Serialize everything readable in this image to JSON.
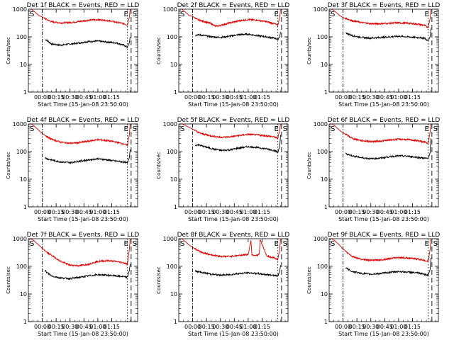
{
  "colors": {
    "events": "#000000",
    "lld": "#e00000",
    "axes": "#000000",
    "background": "#ffffff"
  },
  "chart_data": [
    {
      "type": "line",
      "title": "Det 1f BLACK = Events, RED = LLD",
      "xlabel": "Start Time (15-Jan-08 23:50:00)",
      "ylabel": "Counts/sec",
      "yscale": "log",
      "ylim": [
        1,
        1000
      ],
      "x_ticks": [
        "00:00",
        "00:15",
        "00:30",
        "00:45",
        "01:00",
        "01:15"
      ],
      "y_ticks": [
        "1",
        "10",
        "100",
        "1000"
      ],
      "markers": [
        {
          "label": "S",
          "x_min": 0
        },
        {
          "label": "E",
          "x_min": 92
        },
        {
          "label": "S",
          "x_min": 96
        }
      ],
      "series": [
        {
          "name": "Events",
          "x_min": [
            3,
            5,
            10,
            20,
            30,
            40,
            50,
            60,
            70,
            80,
            88,
            92,
            94,
            95
          ],
          "values": [
            80,
            75,
            55,
            50,
            55,
            60,
            68,
            70,
            65,
            60,
            50,
            42,
            60,
            100
          ]
        },
        {
          "name": "LLD",
          "x_min": [
            -12,
            -8,
            -4,
            0,
            2,
            5,
            10,
            20,
            30,
            40,
            50,
            60,
            70,
            80,
            88,
            92,
            94,
            95
          ],
          "values": [
            1000,
            800,
            600,
            520,
            480,
            420,
            350,
            320,
            330,
            360,
            400,
            420,
            390,
            340,
            300,
            270,
            500,
            1000
          ]
        }
      ]
    },
    {
      "type": "line",
      "title": "Det 2f BLACK = Events, RED = LLD",
      "xlabel": "Start Time (15-Jan-08 23:50:00)",
      "ylabel": "Counts/sec",
      "yscale": "log",
      "ylim": [
        1,
        1000
      ],
      "x_ticks": [
        "00:00",
        "00:15",
        "00:30",
        "00:45",
        "01:00",
        "01:15"
      ],
      "y_ticks": [
        "1",
        "10",
        "100",
        "1000"
      ],
      "markers": [
        {
          "label": "S",
          "x_min": 0
        },
        {
          "label": "E",
          "x_min": 92
        },
        {
          "label": "S",
          "x_min": 96
        }
      ],
      "series": [
        {
          "name": "Events",
          "x_min": [
            3,
            5,
            10,
            20,
            30,
            40,
            50,
            60,
            70,
            80,
            88,
            92,
            94,
            95
          ],
          "values": [
            110,
            120,
            115,
            100,
            95,
            105,
            120,
            125,
            110,
            100,
            90,
            80,
            100,
            150
          ]
        },
        {
          "name": "LLD",
          "x_min": [
            -12,
            -8,
            -4,
            0,
            2,
            5,
            10,
            20,
            25,
            30,
            40,
            50,
            60,
            70,
            80,
            88,
            92,
            94,
            95
          ],
          "values": [
            1000,
            800,
            600,
            550,
            500,
            420,
            380,
            300,
            240,
            260,
            320,
            380,
            420,
            400,
            350,
            300,
            260,
            500,
            1000
          ]
        }
      ]
    },
    {
      "type": "line",
      "title": "Det 3f BLACK = Events, RED = LLD",
      "xlabel": "Start Time (15-Jan-08 23:50:00)",
      "ylabel": "Counts/sec",
      "yscale": "log",
      "ylim": [
        1,
        1000
      ],
      "x_ticks": [
        "00:00",
        "00:15",
        "00:30",
        "00:45",
        "01:00",
        "01:15"
      ],
      "y_ticks": [
        "1",
        "10",
        "100",
        "1000"
      ],
      "markers": [
        {
          "label": "S",
          "x_min": 0
        },
        {
          "label": "E",
          "x_min": 92
        },
        {
          "label": "S",
          "x_min": 96
        }
      ],
      "series": [
        {
          "name": "Events",
          "x_min": [
            3,
            5,
            10,
            20,
            30,
            40,
            50,
            60,
            70,
            80,
            88,
            92,
            94,
            95
          ],
          "values": [
            140,
            130,
            110,
            95,
            90,
            95,
            100,
            105,
            100,
            95,
            90,
            70,
            100,
            200
          ]
        },
        {
          "name": "LLD",
          "x_min": [
            -12,
            -8,
            -4,
            0,
            2,
            5,
            10,
            20,
            30,
            40,
            50,
            60,
            70,
            80,
            88,
            92,
            94,
            95
          ],
          "values": [
            1000,
            800,
            600,
            500,
            480,
            440,
            380,
            330,
            300,
            300,
            310,
            320,
            310,
            290,
            260,
            220,
            450,
            1000
          ]
        }
      ]
    },
    {
      "type": "line",
      "title": "Det 4f BLACK = Events, RED = LLD",
      "xlabel": "Start Time (15-Jan-08 23:50:00)",
      "ylabel": "Counts/sec",
      "yscale": "log",
      "ylim": [
        1,
        1000
      ],
      "x_ticks": [
        "00:00",
        "00:15",
        "00:30",
        "00:45",
        "01:00",
        "01:15"
      ],
      "y_ticks": [
        "1",
        "10",
        "100",
        "1000"
      ],
      "markers": [
        {
          "label": "S",
          "x_min": 0
        },
        {
          "label": "E",
          "x_min": 92
        },
        {
          "label": "S",
          "x_min": 96
        }
      ],
      "series": [
        {
          "name": "Events",
          "x_min": [
            3,
            5,
            10,
            20,
            30,
            40,
            50,
            60,
            70,
            80,
            88,
            92,
            94,
            95
          ],
          "values": [
            60,
            55,
            50,
            42,
            40,
            45,
            50,
            55,
            50,
            45,
            42,
            38,
            60,
            120
          ]
        },
        {
          "name": "LLD",
          "x_min": [
            -12,
            -8,
            -4,
            0,
            2,
            5,
            10,
            20,
            30,
            40,
            50,
            60,
            70,
            80,
            88,
            92,
            94,
            95
          ],
          "values": [
            1000,
            800,
            600,
            450,
            420,
            350,
            280,
            220,
            200,
            210,
            240,
            270,
            250,
            220,
            190,
            170,
            400,
            1000
          ]
        }
      ]
    },
    {
      "type": "line",
      "title": "Det 5f BLACK = Events, RED = LLD",
      "xlabel": "Start Time (15-Jan-08 23:50:00)",
      "ylabel": "Counts/sec",
      "yscale": "log",
      "ylim": [
        1,
        1000
      ],
      "x_ticks": [
        "00:00",
        "00:15",
        "00:30",
        "00:45",
        "01:00",
        "01:15"
      ],
      "y_ticks": [
        "1",
        "10",
        "100",
        "1000"
      ],
      "markers": [
        {
          "label": "S",
          "x_min": 0
        },
        {
          "label": "E",
          "x_min": 92
        },
        {
          "label": "S",
          "x_min": 96
        }
      ],
      "series": [
        {
          "name": "Events",
          "x_min": [
            3,
            5,
            10,
            20,
            30,
            40,
            50,
            60,
            70,
            80,
            88,
            92,
            94,
            95
          ],
          "values": [
            160,
            180,
            160,
            130,
            110,
            115,
            135,
            150,
            140,
            125,
            110,
            95,
            150,
            400
          ]
        },
        {
          "name": "LLD",
          "x_min": [
            -12,
            -8,
            -4,
            0,
            2,
            5,
            10,
            20,
            30,
            40,
            50,
            60,
            70,
            80,
            88,
            92,
            94,
            95
          ],
          "values": [
            1000,
            900,
            750,
            650,
            600,
            520,
            440,
            370,
            330,
            340,
            380,
            420,
            400,
            370,
            340,
            300,
            600,
            1000
          ]
        }
      ]
    },
    {
      "type": "line",
      "title": "Det 6f BLACK = Events, RED = LLD",
      "xlabel": "Start Time (15-Jan-08 23:50:00)",
      "ylabel": "Counts/sec",
      "yscale": "log",
      "ylim": [
        1,
        1000
      ],
      "x_ticks": [
        "00:00",
        "00:15",
        "00:30",
        "00:45",
        "01:00",
        "01:15"
      ],
      "y_ticks": [
        "1",
        "10",
        "100",
        "1000"
      ],
      "markers": [
        {
          "label": "S",
          "x_min": 0
        },
        {
          "label": "E",
          "x_min": 92
        },
        {
          "label": "S",
          "x_min": 96
        }
      ],
      "series": [
        {
          "name": "Events",
          "x_min": [
            3,
            5,
            10,
            20,
            30,
            40,
            50,
            60,
            70,
            80,
            88,
            92,
            94,
            95
          ],
          "values": [
            85,
            80,
            70,
            60,
            55,
            58,
            65,
            70,
            68,
            62,
            58,
            55,
            90,
            300
          ]
        },
        {
          "name": "LLD",
          "x_min": [
            -12,
            -8,
            -4,
            0,
            2,
            5,
            10,
            20,
            30,
            40,
            50,
            60,
            70,
            80,
            88,
            92,
            94,
            95
          ],
          "values": [
            1000,
            800,
            600,
            480,
            450,
            380,
            300,
            250,
            230,
            240,
            260,
            280,
            270,
            250,
            220,
            200,
            500,
            1000
          ]
        }
      ]
    },
    {
      "type": "line",
      "title": "Det 7f BLACK = Events, RED = LLD",
      "xlabel": "Start Time (15-Jan-08 23:50:00)",
      "ylabel": "Counts/sec",
      "yscale": "log",
      "ylim": [
        1,
        1000
      ],
      "x_ticks": [
        "00:00",
        "00:15",
        "00:30",
        "00:45",
        "01:00",
        "01:15"
      ],
      "y_ticks": [
        "1",
        "10",
        "100",
        "1000"
      ],
      "markers": [
        {
          "label": "S",
          "x_min": 0
        },
        {
          "label": "E",
          "x_min": 92
        },
        {
          "label": "S",
          "x_min": 96
        }
      ],
      "series": [
        {
          "name": "Events",
          "x_min": [
            3,
            5,
            10,
            20,
            30,
            40,
            50,
            60,
            70,
            80,
            88,
            92,
            94,
            95
          ],
          "values": [
            70,
            60,
            45,
            38,
            36,
            40,
            45,
            50,
            48,
            45,
            42,
            40,
            70,
            120
          ]
        },
        {
          "name": "LLD",
          "x_min": [
            -12,
            -8,
            -4,
            0,
            2,
            5,
            10,
            20,
            30,
            40,
            50,
            60,
            70,
            80,
            88,
            92,
            94,
            95
          ],
          "values": [
            1000,
            800,
            600,
            450,
            400,
            320,
            250,
            150,
            110,
            105,
            120,
            150,
            160,
            150,
            135,
            120,
            400,
            1000
          ]
        }
      ]
    },
    {
      "type": "line",
      "title": "Det 8f BLACK = Events, RED = LLD",
      "xlabel": "Start Time (15-Jan-08 23:50:00)",
      "ylabel": "Counts/sec",
      "yscale": "log",
      "ylim": [
        1,
        1000
      ],
      "x_ticks": [
        "00:00",
        "00:15",
        "00:30",
        "00:45",
        "01:00",
        "01:15"
      ],
      "y_ticks": [
        "1",
        "10",
        "100",
        "1000"
      ],
      "markers": [
        {
          "label": "S",
          "x_min": 0
        },
        {
          "label": "E",
          "x_min": 92
        },
        {
          "label": "S",
          "x_min": 96
        }
      ],
      "series": [
        {
          "name": "Events",
          "x_min": [
            3,
            5,
            10,
            20,
            30,
            40,
            50,
            60,
            70,
            80,
            88,
            92,
            94,
            95
          ],
          "values": [
            70,
            65,
            60,
            52,
            48,
            50,
            55,
            58,
            55,
            50,
            48,
            45,
            65,
            110
          ]
        },
        {
          "name": "LLD",
          "x_min": [
            -12,
            -8,
            -4,
            0,
            2,
            5,
            10,
            20,
            30,
            40,
            50,
            60,
            63,
            64,
            70,
            72,
            73,
            80,
            88,
            92,
            94,
            95
          ],
          "values": [
            1000,
            800,
            600,
            480,
            450,
            380,
            320,
            260,
            230,
            230,
            250,
            270,
            900,
            260,
            250,
            280,
            900,
            240,
            200,
            180,
            400,
            1000
          ]
        }
      ]
    },
    {
      "type": "line",
      "title": "Det 9f BLACK = Events, RED = LLD",
      "xlabel": "Start Time (15-Jan-08 23:50:00)",
      "ylabel": "Counts/sec",
      "yscale": "log",
      "ylim": [
        1,
        1000
      ],
      "x_ticks": [
        "00:00",
        "00:15",
        "00:30",
        "00:45",
        "01:00",
        "01:15"
      ],
      "y_ticks": [
        "1",
        "10",
        "100",
        "1000"
      ],
      "markers": [
        {
          "label": "S",
          "x_min": 0
        },
        {
          "label": "E",
          "x_min": 92
        },
        {
          "label": "S",
          "x_min": 96
        }
      ],
      "series": [
        {
          "name": "Events",
          "x_min": [
            3,
            5,
            10,
            20,
            30,
            40,
            50,
            60,
            70,
            80,
            88,
            92,
            94,
            95
          ],
          "values": [
            90,
            80,
            65,
            55,
            52,
            55,
            60,
            65,
            62,
            58,
            52,
            48,
            75,
            200
          ]
        },
        {
          "name": "LLD",
          "x_min": [
            -12,
            -8,
            -4,
            0,
            2,
            5,
            10,
            20,
            30,
            40,
            50,
            60,
            70,
            80,
            88,
            92,
            94,
            95
          ],
          "values": [
            1000,
            800,
            600,
            420,
            380,
            300,
            230,
            180,
            165,
            170,
            190,
            210,
            200,
            185,
            165,
            150,
            400,
            1000
          ]
        }
      ]
    }
  ]
}
